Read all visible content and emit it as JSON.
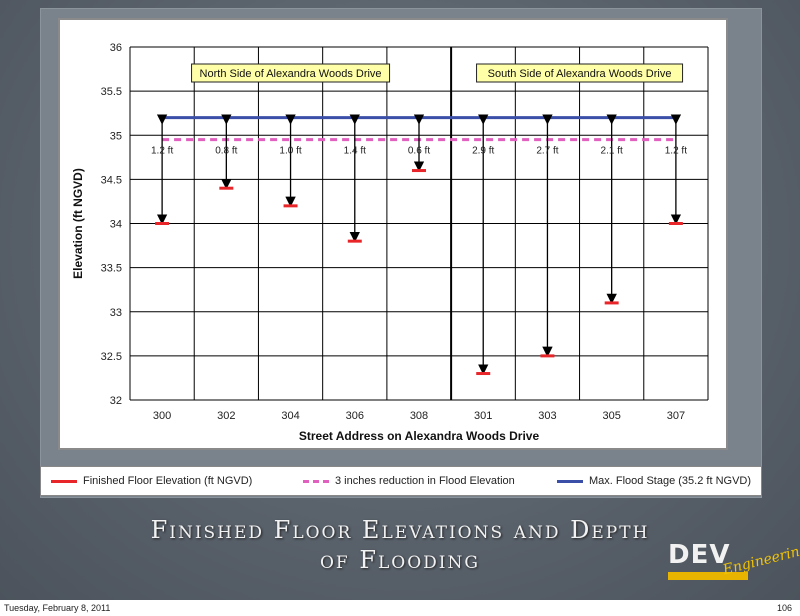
{
  "slide": {
    "title_line1": "Finished Floor Elevations and Depth",
    "title_line2": "of Flooding",
    "footer_date": "Tuesday, February 8, 2011",
    "page_number": "106",
    "logo_text": "DEV",
    "logo_script": "Engineering"
  },
  "chart_data": {
    "type": "line",
    "title": "",
    "xlabel": "Street Address on Alexandra Woods Drive",
    "ylabel": "Elevation (ft NGVD)",
    "categories": [
      "300",
      "302",
      "304",
      "306",
      "308",
      "301",
      "303",
      "305",
      "307"
    ],
    "ylim": [
      32,
      36
    ],
    "y_ticks": [
      "32",
      "32.5",
      "33",
      "33.5",
      "34",
      "34.5",
      "35",
      "35.5",
      "36"
    ],
    "grid": true,
    "legend_position": "bottom",
    "divider_after_category": "308",
    "side_labels": [
      "North Side of Alexandra Woods Drive",
      "South Side of Alexandra Woods Drive"
    ],
    "series": [
      {
        "name": "Finished Floor Elevation (ft NGVD)",
        "color": "#e8262a",
        "style": "marker-dash",
        "values": [
          34.0,
          34.4,
          34.2,
          33.8,
          34.6,
          32.3,
          32.5,
          33.1,
          34.0
        ]
      },
      {
        "name": "3 inches reduction in Flood Elevation",
        "color": "#e05fbf",
        "style": "dashed",
        "values": [
          34.95,
          34.95,
          34.95,
          34.95,
          34.95,
          34.95,
          34.95,
          34.95,
          34.95
        ]
      },
      {
        "name": "Max. Flood Stage (35.2 ft NGVD)",
        "color": "#3b4fa8",
        "style": "solid",
        "values": [
          35.2,
          35.2,
          35.2,
          35.2,
          35.2,
          35.2,
          35.2,
          35.2,
          35.2
        ]
      }
    ],
    "depth_labels": [
      "1.2 ft",
      "0.8 ft",
      "1.0 ft",
      "1.4 ft",
      "0.6 ft",
      "2.9 ft",
      "2.7 ft",
      "2.1 ft",
      "1.2 ft"
    ],
    "colors": {
      "floor": "#e8262a",
      "reduction": "#e05fbf",
      "flood": "#3b4fa8",
      "arrow": "#000000",
      "grid": "#000000"
    }
  }
}
